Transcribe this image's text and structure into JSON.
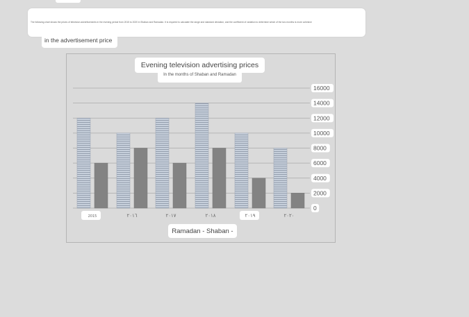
{
  "question": {
    "text": "The following chart shows the prices of television advertisements in the evening period from 2015 to 2020 in Shaban and Ramadan. It is required to calculate the range and standard deviation, and the coefficient of variation to determine which of the two months is more cohesive",
    "subtext": "in the advertisement price"
  },
  "chart_data": {
    "type": "bar",
    "title": "Evening television advertising prices",
    "subtitle": "In the months of Shaban and Ramadan",
    "xlabel": "Ramadan - Shaban -",
    "ylabel": "",
    "categories": [
      "2015",
      "٢٠١٦",
      "٢٠١٧",
      "٢٠١٨",
      "٢٠١٩",
      "٢٠٢٠"
    ],
    "series": [
      {
        "name": "Ramadan",
        "values": [
          12000,
          10000,
          12000,
          14000,
          10000,
          8000
        ],
        "color": "#b9c2d0",
        "pattern": "horizontal-lines"
      },
      {
        "name": "Shaban",
        "values": [
          6000,
          8000,
          6000,
          8000,
          4000,
          2000
        ],
        "color": "#838383"
      }
    ],
    "yticks": [
      16000,
      14000,
      12000,
      10000,
      8000,
      6000,
      4000,
      2000,
      0
    ],
    "ylim": [
      0,
      16000
    ],
    "grid": true,
    "y_axis_side": "right"
  }
}
